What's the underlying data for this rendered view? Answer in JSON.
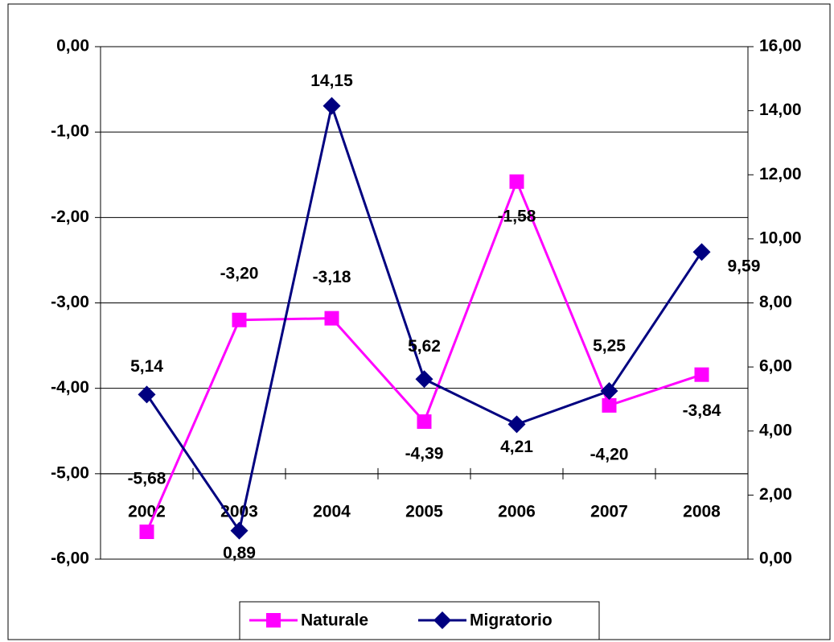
{
  "chart_data": {
    "type": "line",
    "categories": [
      "2002",
      "2003",
      "2004",
      "2005",
      "2006",
      "2007",
      "2008"
    ],
    "series": [
      {
        "name": "Naturale",
        "color": "#ff00ff",
        "marker": "square",
        "axis": "y",
        "values": [
          -5.68,
          -3.2,
          -3.18,
          -4.39,
          -1.58,
          -4.2,
          -3.84
        ],
        "value_labels": [
          "-5,68",
          "-3,20",
          "-3,18",
          "-4,39",
          "-1,58",
          "-4,20",
          "-3,84"
        ]
      },
      {
        "name": "Migratorio",
        "color": "#000080",
        "marker": "diamond",
        "axis": "y2",
        "values": [
          5.14,
          0.89,
          14.15,
          5.62,
          4.21,
          5.25,
          9.59
        ],
        "value_labels": [
          "5,14",
          "0,89",
          "14,15",
          "5,62",
          "4,21",
          "5,25",
          "9,59"
        ]
      }
    ],
    "ylim": [
      -6,
      0
    ],
    "yticks": [
      {
        "value": -6,
        "label": "-6,00"
      },
      {
        "value": -5,
        "label": "-5,00"
      },
      {
        "value": -4,
        "label": "-4,00"
      },
      {
        "value": -3,
        "label": "-3,00"
      },
      {
        "value": -2,
        "label": "-2,00"
      },
      {
        "value": -1,
        "label": "-1,00"
      },
      {
        "value": 0,
        "label": "0,00"
      }
    ],
    "y2lim": [
      0,
      16
    ],
    "y2ticks": [
      {
        "value": 0,
        "label": "0,00"
      },
      {
        "value": 2,
        "label": "2,00"
      },
      {
        "value": 4,
        "label": "4,00"
      },
      {
        "value": 6,
        "label": "6,00"
      },
      {
        "value": 8,
        "label": "8,00"
      },
      {
        "value": 10,
        "label": "10,00"
      },
      {
        "value": 12,
        "label": "12,00"
      },
      {
        "value": 14,
        "label": "14,00"
      },
      {
        "value": 16,
        "label": "16,00"
      }
    ],
    "grid": true,
    "legend": "bottom"
  }
}
